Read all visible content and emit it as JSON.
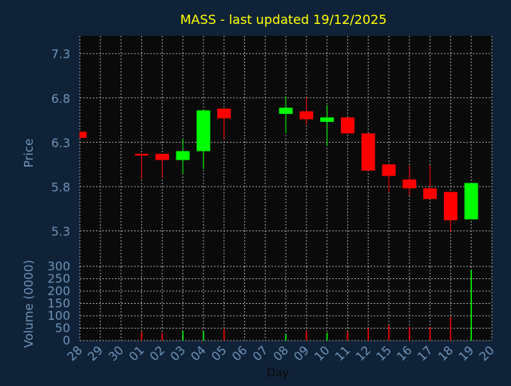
{
  "chart_data": [
    {
      "type": "candlestick",
      "title": "MASS - last updated 19/12/2025",
      "xlabel": "Day",
      "ylabel": "Price",
      "ylim": [
        4.9,
        7.5
      ],
      "yticks": [
        5.3,
        5.8,
        6.3,
        6.8,
        7.3
      ],
      "categories": [
        "28",
        "29",
        "30",
        "01",
        "02",
        "03",
        "04",
        "05",
        "06",
        "07",
        "08",
        "09",
        "10",
        "11",
        "12",
        "15",
        "16",
        "17",
        "18",
        "19",
        "20"
      ],
      "grid": true,
      "colors": {
        "up": "#00ff00",
        "down": "#ff0000"
      },
      "candles": [
        {
          "day": "28",
          "open": 6.42,
          "high": 6.42,
          "low": 6.35,
          "close": 6.35
        },
        {
          "day": "01",
          "open": 6.17,
          "high": 6.17,
          "low": 5.89,
          "close": 6.15
        },
        {
          "day": "02",
          "open": 6.17,
          "high": 6.17,
          "low": 5.9,
          "close": 6.1
        },
        {
          "day": "03",
          "open": 6.1,
          "high": 6.34,
          "low": 5.94,
          "close": 6.2
        },
        {
          "day": "04",
          "open": 6.2,
          "high": 6.66,
          "low": 6.0,
          "close": 6.66
        },
        {
          "day": "05",
          "open": 6.68,
          "high": 6.68,
          "low": 6.33,
          "close": 6.57
        },
        {
          "day": "08",
          "open": 6.62,
          "high": 6.82,
          "low": 6.4,
          "close": 6.69
        },
        {
          "day": "09",
          "open": 6.65,
          "high": 6.81,
          "low": 6.5,
          "close": 6.56
        },
        {
          "day": "10",
          "open": 6.53,
          "high": 6.72,
          "low": 6.26,
          "close": 6.58
        },
        {
          "day": "11",
          "open": 6.58,
          "high": 6.58,
          "low": 6.4,
          "close": 6.4
        },
        {
          "day": "12",
          "open": 6.4,
          "high": 6.4,
          "low": 5.98,
          "close": 5.98
        },
        {
          "day": "15",
          "open": 6.05,
          "high": 6.05,
          "low": 5.74,
          "close": 5.92
        },
        {
          "day": "16",
          "open": 5.88,
          "high": 6.04,
          "low": 5.7,
          "close": 5.78
        },
        {
          "day": "17",
          "open": 5.78,
          "high": 6.04,
          "low": 5.66,
          "close": 5.66
        },
        {
          "day": "18",
          "open": 5.74,
          "high": 5.74,
          "low": 5.29,
          "close": 5.42
        },
        {
          "day": "19",
          "open": 5.43,
          "high": 5.84,
          "low": 5.43,
          "close": 5.84
        }
      ]
    },
    {
      "type": "bar",
      "xlabel": "Day",
      "ylabel": "Volume (0000)",
      "ylim": [
        0,
        300
      ],
      "yticks": [
        0,
        50,
        100,
        150,
        200,
        250,
        300
      ],
      "categories": [
        "28",
        "29",
        "30",
        "01",
        "02",
        "03",
        "04",
        "05",
        "06",
        "07",
        "08",
        "09",
        "10",
        "11",
        "12",
        "15",
        "16",
        "17",
        "18",
        "19",
        "20"
      ],
      "grid": true,
      "bars": [
        {
          "day": "01",
          "value": 35,
          "color": "#ff0000"
        },
        {
          "day": "02",
          "value": 30,
          "color": "#ff0000"
        },
        {
          "day": "03",
          "value": 38,
          "color": "#00ff00"
        },
        {
          "day": "04",
          "value": 38,
          "color": "#00ff00"
        },
        {
          "day": "05",
          "value": 45,
          "color": "#ff0000"
        },
        {
          "day": "08",
          "value": 25,
          "color": "#00ff00"
        },
        {
          "day": "09",
          "value": 38,
          "color": "#ff0000"
        },
        {
          "day": "10",
          "value": 32,
          "color": "#00ff00"
        },
        {
          "day": "11",
          "value": 35,
          "color": "#ff0000"
        },
        {
          "day": "12",
          "value": 50,
          "color": "#ff0000"
        },
        {
          "day": "15",
          "value": 62,
          "color": "#ff0000"
        },
        {
          "day": "16",
          "value": 55,
          "color": "#ff0000"
        },
        {
          "day": "17",
          "value": 55,
          "color": "#ff0000"
        },
        {
          "day": "18",
          "value": 95,
          "color": "#ff0000"
        },
        {
          "day": "19",
          "value": 285,
          "color": "#00ff00"
        }
      ]
    }
  ]
}
